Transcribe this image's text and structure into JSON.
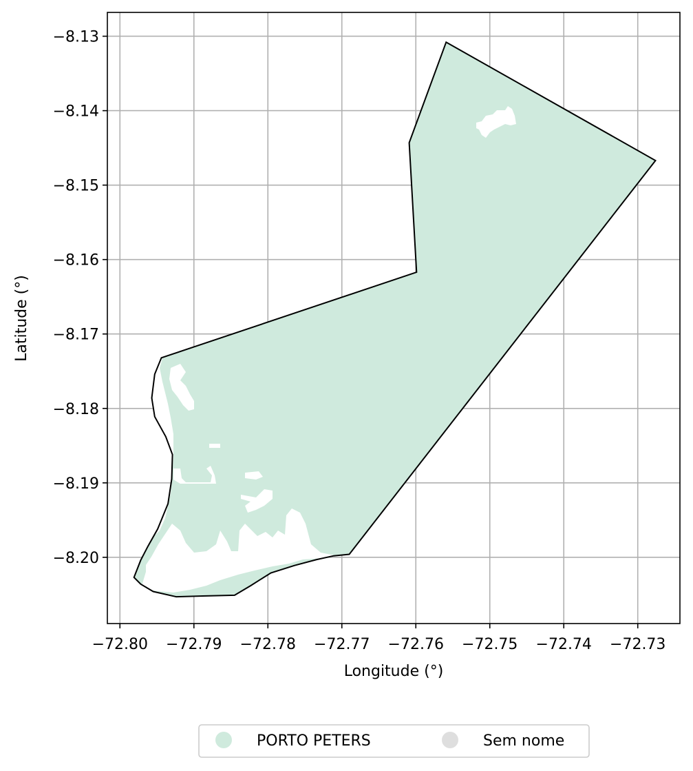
{
  "chart_data": {
    "type": "map",
    "xlabel": "Longitude (°)",
    "ylabel": "Latitude (°)",
    "xlim": [
      -72.8017,
      -72.7243
    ],
    "ylim": [
      -8.2089,
      -8.1268
    ],
    "xticks": [
      -72.8,
      -72.79,
      -72.78,
      -72.77,
      -72.76,
      -72.75,
      -72.74,
      -72.73
    ],
    "yticks": [
      -8.13,
      -8.14,
      -8.15,
      -8.16,
      -8.17,
      -8.18,
      -8.19,
      -8.2
    ],
    "xtick_labels": [
      "−72.80",
      "−72.79",
      "−72.78",
      "−72.77",
      "−72.76",
      "−72.75",
      "−72.74",
      "−72.73"
    ],
    "ytick_labels": [
      "−8.13",
      "−8.14",
      "−8.15",
      "−8.16",
      "−8.17",
      "−8.18",
      "−8.19",
      "−8.20"
    ],
    "grid": true,
    "legend_position": "bottom-center",
    "legend": [
      {
        "label": "PORTO PETERS",
        "color": "#cfeadd"
      },
      {
        "label": "Sem nome",
        "color": "#dedede"
      }
    ],
    "region": {
      "name": "PORTO PETERS",
      "fill": "#cfeadd",
      "outline": "#000000",
      "boundary": [
        [
          -72.7559,
          -8.1308
        ],
        [
          -72.7276,
          -8.1467
        ],
        [
          -72.769,
          -8.1996
        ],
        [
          -72.7711,
          -8.1998
        ],
        [
          -72.7734,
          -8.2003
        ],
        [
          -72.7764,
          -8.2011
        ],
        [
          -72.7796,
          -8.2021
        ],
        [
          -72.7812,
          -8.2031
        ],
        [
          -72.7823,
          -8.2038
        ],
        [
          -72.7845,
          -8.2051
        ],
        [
          -72.7888,
          -8.2052
        ],
        [
          -72.7924,
          -8.2053
        ],
        [
          -72.7955,
          -8.2046
        ],
        [
          -72.7972,
          -8.2036
        ],
        [
          -72.7981,
          -8.2027
        ],
        [
          -72.7972,
          -8.2004
        ],
        [
          -72.7962,
          -8.1985
        ],
        [
          -72.7949,
          -8.1962
        ],
        [
          -72.7935,
          -8.1928
        ],
        [
          -72.793,
          -8.1895
        ],
        [
          -72.7929,
          -8.1862
        ],
        [
          -72.7938,
          -8.1838
        ],
        [
          -72.7953,
          -8.1811
        ],
        [
          -72.7957,
          -8.1786
        ],
        [
          -72.7953,
          -8.1754
        ],
        [
          -72.7944,
          -8.1732
        ],
        [
          -72.7599,
          -8.1617
        ],
        [
          -72.7609,
          -8.1443
        ]
      ]
    }
  }
}
